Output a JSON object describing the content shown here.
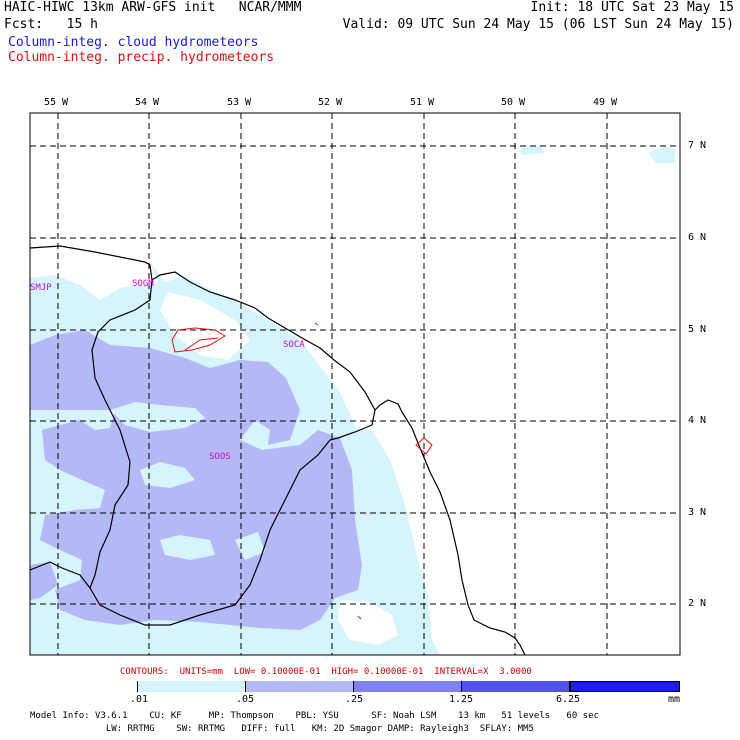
{
  "header": {
    "line1_left": "HAIC-HIWC 13km ARW-GFS init   NCAR/MMM",
    "line1_right": "Init: 18 UTC Sat 23 May 15",
    "line2_left": "Fcst:   15 h",
    "line2_right": "Valid: 09 UTC Sun 24 May 15 (06 LST Sun 24 May 15)",
    "field1": "Column-integ. cloud hydrometeors",
    "field2": "Column-integ. precip. hydrometeors",
    "field1_color": "#1a1ad0",
    "field2_color": "#e01010"
  },
  "map": {
    "lon_labels": [
      "55 W",
      "54 W",
      "53 W",
      "52 W",
      "51 W",
      "50 W",
      "49 W"
    ],
    "lat_labels": [
      "7 N",
      "6 N",
      "5 N",
      "4 N",
      "3 N",
      "2 N"
    ],
    "station_labels": [
      "SMJP",
      "SOGM",
      "SOCA",
      "SOOS"
    ],
    "station_color": "#d000d0",
    "coast_color": "#000000",
    "grid_color": "#000000"
  },
  "contours": {
    "text": "CONTOURS:  UNITS=mm  LOW= 0.10000E-01  HIGH= 0.10000E-01  INTERVAL=X  3.0000",
    "color": "#d00000"
  },
  "colorbar": {
    "ticks": [
      ".01",
      ".05",
      ".25",
      "1.25",
      "6.25"
    ],
    "units": "mm",
    "colors": [
      "#ffffff",
      "#d6f4fb",
      "#b4b8f6",
      "#7f80f2",
      "#5252ec",
      "#1e1ee6"
    ]
  },
  "footer": {
    "line1": "Model Info: V3.6.1    CU: KF     MP: Thompson    PBL: YSU      SF: Noah LSM    13 km   51 levels   60 sec",
    "line2": "              LW: RRTMG    SW: RRTMG   DIFF: full   KM: 2D Smagor DAMP: Rayleigh3  SFLAY: MM5"
  }
}
